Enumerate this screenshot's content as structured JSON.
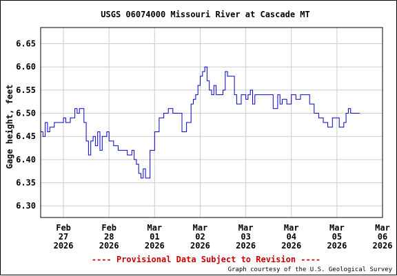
{
  "chart_data": {
    "type": "line",
    "title": "USGS 06074000 Missouri River at Cascade MT",
    "ylabel": "Gage height, feet",
    "xlabel": "",
    "ylim": [
      6.275,
      6.685
    ],
    "xlim": [
      0,
      7.5
    ],
    "yticks": [
      "6.30",
      "6.35",
      "6.40",
      "6.45",
      "6.50",
      "6.55",
      "6.60",
      "6.65"
    ],
    "xtick_labels": [
      {
        "month": "Feb",
        "day": "27",
        "year": "2026"
      },
      {
        "month": "Feb",
        "day": "28",
        "year": "2026"
      },
      {
        "month": "Mar",
        "day": "01",
        "year": "2026"
      },
      {
        "month": "Mar",
        "day": "02",
        "year": "2026"
      },
      {
        "month": "Mar",
        "day": "03",
        "year": "2026"
      },
      {
        "month": "Mar",
        "day": "04",
        "year": "2026"
      },
      {
        "month": "Mar",
        "day": "05",
        "year": "2026"
      },
      {
        "month": "Mar",
        "day": "06",
        "year": "2026"
      }
    ],
    "grid": true,
    "line_color": "#0000cc",
    "series": [
      {
        "x": [
          0.0,
          0.05,
          0.1,
          0.15,
          0.2,
          0.3,
          0.4,
          0.5,
          0.55,
          0.65,
          0.75,
          0.8,
          0.85,
          0.95,
          1.0,
          1.05,
          1.1,
          1.15,
          1.2,
          1.25,
          1.3,
          1.35,
          1.4,
          1.45,
          1.5,
          1.6,
          1.7,
          1.8,
          1.9,
          2.0,
          2.05,
          2.1,
          2.15,
          2.2,
          2.25,
          2.3,
          2.4,
          2.5,
          2.6,
          2.7,
          2.75,
          2.8,
          2.85,
          2.9,
          3.0,
          3.1,
          3.2,
          3.3,
          3.35,
          3.4,
          3.45,
          3.5,
          3.55,
          3.6,
          3.65,
          3.7,
          3.75,
          3.8,
          3.85,
          3.9,
          4.0,
          4.05,
          4.1,
          4.2,
          4.25,
          4.3,
          4.4,
          4.5,
          4.55,
          4.6,
          4.65,
          4.7,
          4.8,
          4.9,
          5.0,
          5.1,
          5.2,
          5.25,
          5.3,
          5.4,
          5.5,
          5.55,
          5.6,
          5.7,
          5.8,
          5.9,
          6.0,
          6.1,
          6.2,
          6.3,
          6.4,
          6.5,
          6.55,
          6.6,
          6.65,
          6.7,
          6.75,
          6.8,
          6.85,
          6.9,
          6.95,
          7.0
        ],
        "y": [
          6.46,
          6.45,
          6.48,
          6.46,
          6.47,
          6.48,
          6.48,
          6.49,
          6.48,
          6.49,
          6.51,
          6.5,
          6.51,
          6.48,
          6.44,
          6.41,
          6.44,
          6.45,
          6.43,
          6.46,
          6.42,
          6.45,
          6.45,
          6.46,
          6.44,
          6.43,
          6.42,
          6.42,
          6.41,
          6.42,
          6.4,
          6.39,
          6.37,
          6.36,
          6.38,
          6.36,
          6.42,
          6.46,
          6.49,
          6.5,
          6.5,
          6.51,
          6.51,
          6.5,
          6.5,
          6.46,
          6.48,
          6.52,
          6.53,
          6.54,
          6.56,
          6.58,
          6.59,
          6.6,
          6.57,
          6.55,
          6.54,
          6.56,
          6.54,
          6.54,
          6.55,
          6.59,
          6.58,
          6.58,
          6.54,
          6.52,
          6.54,
          6.53,
          6.54,
          6.55,
          6.52,
          6.54,
          6.54,
          6.54,
          6.54,
          6.51,
          6.54,
          6.52,
          6.53,
          6.52,
          6.54,
          6.54,
          6.53,
          6.54,
          6.54,
          6.52,
          6.5,
          6.49,
          6.48,
          6.47,
          6.49,
          6.49,
          6.47,
          6.47,
          6.48,
          6.5,
          6.51,
          6.5,
          6.5,
          6.5,
          6.5,
          6.5
        ]
      }
    ]
  },
  "footer": {
    "provisional": "---- Provisional Data Subject to Revision ----",
    "provisional_color": "#cc0000",
    "credit": "Graph courtesy of the U.S. Geological Survey"
  }
}
